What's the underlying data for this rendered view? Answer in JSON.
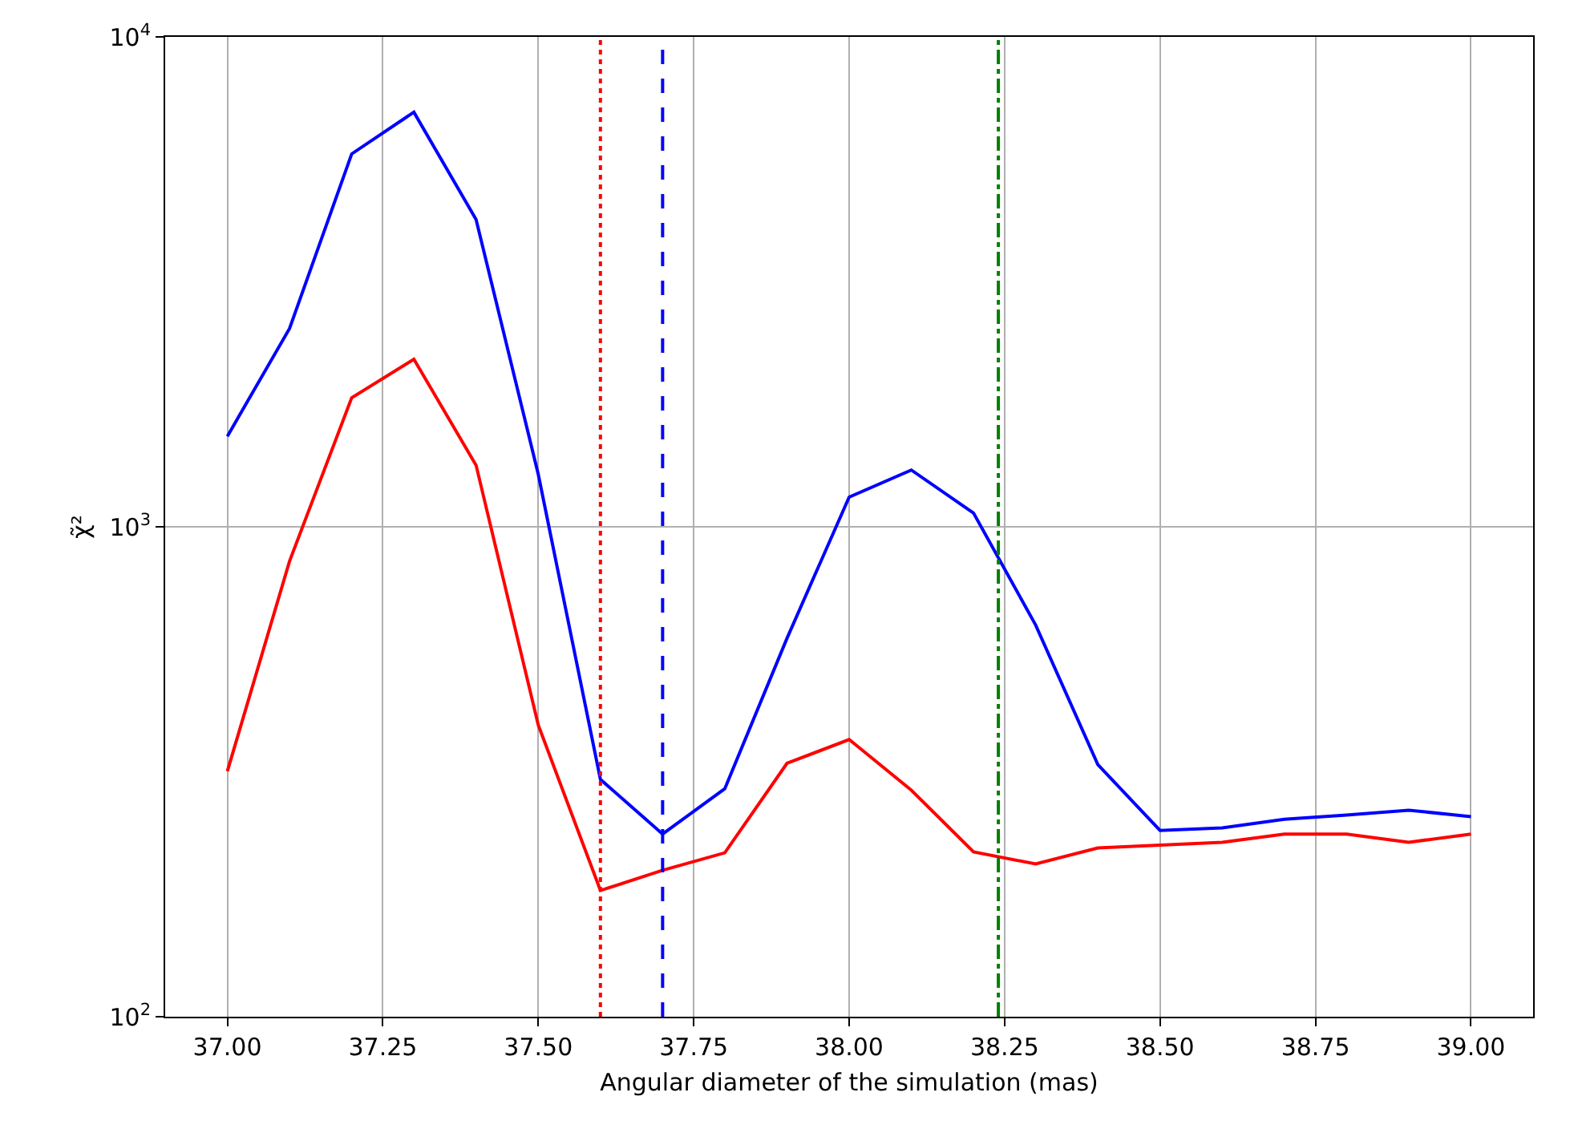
{
  "chart_data": {
    "type": "line",
    "xlabel": "Angular diameter of the simulation (mas)",
    "ylabel": "χ̃²",
    "x": [
      37.0,
      37.1,
      37.2,
      37.3,
      37.4,
      37.5,
      37.6,
      37.7,
      37.8,
      37.9,
      38.0,
      38.1,
      38.2,
      38.3,
      38.4,
      38.5,
      38.6,
      38.7,
      38.8,
      38.9,
      39.0
    ],
    "series": [
      {
        "color": "#0000ff",
        "values": [
          1530,
          2540,
          5770,
          7020,
          4240,
          1280,
          305,
          236,
          292,
          592,
          1150,
          1306,
          1067,
          630,
          327,
          240,
          243,
          253,
          258,
          264,
          256
        ]
      },
      {
        "color": "#ff0000",
        "values": [
          317,
          851,
          1834,
          2198,
          1336,
          394,
          181,
          199,
          216,
          329,
          368,
          290,
          217,
          205,
          221,
          224,
          227,
          236,
          236,
          227,
          236
        ]
      }
    ],
    "log": "y",
    "xlim": [
      36.9,
      39.1
    ],
    "ylim": [
      100,
      10000
    ],
    "xticks": [
      {
        "value": 37.0,
        "label": "37.00"
      },
      {
        "value": 37.25,
        "label": "37.25"
      },
      {
        "value": 37.5,
        "label": "37.50"
      },
      {
        "value": 37.75,
        "label": "37.75"
      },
      {
        "value": 38.0,
        "label": "38.00"
      },
      {
        "value": 38.25,
        "label": "38.25"
      },
      {
        "value": 38.5,
        "label": "38.50"
      },
      {
        "value": 38.75,
        "label": "38.75"
      },
      {
        "value": 39.0,
        "label": "39.00"
      }
    ],
    "yticks": [
      {
        "value": 100,
        "label": "10$^{2}$"
      },
      {
        "value": 1000,
        "label": "10$^{3}$"
      },
      {
        "value": 10000,
        "label": "10$^{4}$"
      }
    ],
    "ref_lines": [
      {
        "axis": "x",
        "value": 37.6,
        "color": "#ff0000",
        "line_style": "dotted"
      },
      {
        "axis": "x",
        "value": 37.7,
        "color": "#0000ff",
        "line_style": "dashed"
      },
      {
        "axis": "x",
        "value": 38.24,
        "color": "#008000",
        "line_style": "dashdot"
      }
    ],
    "grid": true,
    "marker": "none",
    "line_style": "solid"
  }
}
